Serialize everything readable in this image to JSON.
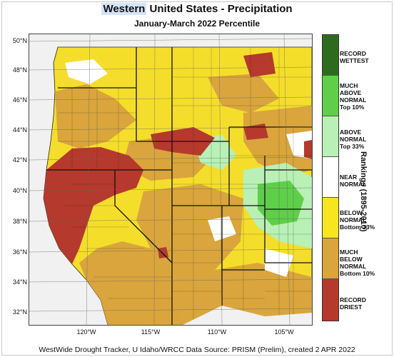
{
  "title": {
    "highlight": "Western",
    "rest": " United States - Precipitation"
  },
  "subtitle": "January-March 2022 Percentile",
  "latitude_labels": [
    "50°N",
    "48°N",
    "46°N",
    "44°N",
    "42°N",
    "40°N",
    "38°N",
    "36°N",
    "34°N",
    "32°N"
  ],
  "longitude_labels": [
    "120°W",
    "115°W",
    "110°W",
    "105°W"
  ],
  "legend": {
    "title": "Rankings (1895-2010)",
    "items": [
      {
        "label": [
          "RECORD",
          "WETTEST"
        ],
        "color": "#2f6b1f"
      },
      {
        "label": [
          "MUCH",
          "ABOVE",
          "NORMAL",
          "Top 10%"
        ],
        "color": "#5fcf4a"
      },
      {
        "label": [
          "ABOVE",
          "NORMAL",
          "Top 33%"
        ],
        "color": "#b8f0b5"
      },
      {
        "label": [
          "NEAR",
          "NORMAL"
        ],
        "color": "#ffffff"
      },
      {
        "label": [
          "BELOW",
          "NORMAL",
          "Bottom 33%"
        ],
        "color": "#f7e51f"
      },
      {
        "label": [
          "MUCH",
          "BELOW",
          "NORMAL",
          "Bottom 10%"
        ],
        "color": "#d9a53c"
      },
      {
        "label": [
          "RECORD",
          "DRIEST"
        ],
        "color": "#b5392c"
      }
    ]
  },
  "footer": "WestWide Drought Tracker, U Idaho/WRCC Data Source: PRISM (Prelim), created  2 APR 2022"
}
